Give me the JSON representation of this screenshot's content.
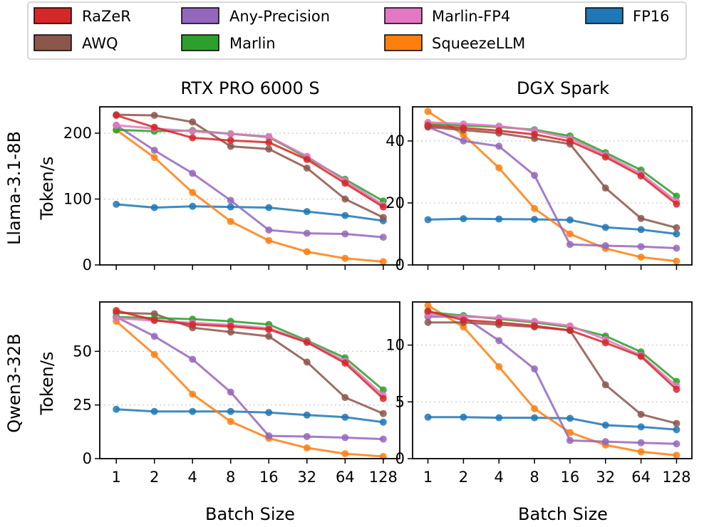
{
  "legend": [
    {
      "name": "RaZeR",
      "color": "#d62728"
    },
    {
      "name": "AWQ",
      "color": "#8c564b"
    },
    {
      "name": "Any-Precision",
      "color": "#9467bd"
    },
    {
      "name": "Marlin",
      "color": "#2ca02c"
    },
    {
      "name": "Marlin-FP4",
      "color": "#e377c2"
    },
    {
      "name": "SqueezeLLM",
      "color": "#ff7f0e"
    },
    {
      "name": "FP16",
      "color": "#1f77b4"
    }
  ],
  "xlabel": "Batch Size",
  "x_ticks": [
    "1",
    "2",
    "4",
    "8",
    "16",
    "32",
    "64",
    "128"
  ],
  "row_labels": [
    {
      "model": "Llama-3.1-8B",
      "unit": "Token/s"
    },
    {
      "model": "Qwen3-32B",
      "unit": "Token/s"
    }
  ],
  "chart_data": [
    {
      "type": "line",
      "title": "RTX PRO 6000 S",
      "ylabel": "Token/s",
      "ylim": [
        0,
        240
      ],
      "yticks": [
        0,
        100,
        200
      ],
      "categories": [
        "1",
        "2",
        "4",
        "8",
        "16",
        "32",
        "64",
        "128"
      ],
      "series": [
        {
          "name": "FP16",
          "values": [
            92,
            87,
            89,
            88,
            87,
            81,
            75,
            67
          ]
        },
        {
          "name": "SqueezeLLM",
          "values": [
            205,
            163,
            110,
            66,
            37,
            20,
            10,
            5
          ]
        },
        {
          "name": "Any-Precision",
          "values": [
            212,
            174,
            139,
            98,
            53,
            48,
            47,
            42
          ]
        },
        {
          "name": "AWQ",
          "values": [
            228,
            227,
            217,
            180,
            176,
            147,
            100,
            72
          ]
        },
        {
          "name": "Marlin",
          "values": [
            205,
            203,
            204,
            199,
            194,
            163,
            130,
            97
          ]
        },
        {
          "name": "Marlin-FP4",
          "values": [
            212,
            207,
            203,
            199,
            195,
            165,
            128,
            91
          ]
        },
        {
          "name": "RaZeR",
          "values": [
            227,
            209,
            193,
            189,
            186,
            160,
            124,
            88
          ]
        }
      ]
    },
    {
      "type": "line",
      "title": "DGX Spark",
      "ylabel": "Token/s",
      "ylim": [
        0,
        51
      ],
      "yticks": [
        0,
        20,
        40
      ],
      "categories": [
        "1",
        "2",
        "4",
        "8",
        "16",
        "32",
        "64",
        "128"
      ],
      "series": [
        {
          "name": "FP16",
          "values": [
            14.6,
            14.9,
            14.8,
            14.7,
            14.5,
            12.1,
            11.4,
            10.0
          ]
        },
        {
          "name": "SqueezeLLM",
          "values": [
            49.5,
            42.0,
            31.3,
            18.2,
            10.0,
            5.3,
            2.5,
            1.2
          ]
        },
        {
          "name": "Any-Precision",
          "values": [
            44.5,
            40.0,
            38.3,
            28.9,
            6.6,
            6.2,
            5.9,
            5.4
          ]
        },
        {
          "name": "AWQ",
          "values": [
            44.5,
            43.5,
            42.5,
            40.8,
            39.0,
            24.8,
            15.0,
            12.0
          ]
        },
        {
          "name": "Marlin",
          "values": [
            45.5,
            45.0,
            44.5,
            43.6,
            41.6,
            36.2,
            30.6,
            22.2
          ]
        },
        {
          "name": "Marlin-FP4",
          "values": [
            46.0,
            45.5,
            44.8,
            43.3,
            40.8,
            35.5,
            29.5,
            20.5
          ]
        },
        {
          "name": "RaZeR",
          "values": [
            45.0,
            44.2,
            43.3,
            42.1,
            39.9,
            34.8,
            28.7,
            19.6
          ]
        }
      ]
    },
    {
      "type": "line",
      "title": "",
      "ylabel": "Token/s",
      "ylim": [
        0,
        73
      ],
      "yticks": [
        0,
        25,
        50
      ],
      "categories": [
        "1",
        "2",
        "4",
        "8",
        "16",
        "32",
        "64",
        "128"
      ],
      "series": [
        {
          "name": "FP16",
          "values": [
            23,
            22,
            22,
            22,
            21.5,
            20.3,
            19.3,
            17
          ]
        },
        {
          "name": "SqueezeLLM",
          "values": [
            64,
            48.5,
            30,
            17.3,
            9.5,
            5,
            2.3,
            1
          ]
        },
        {
          "name": "Any-Precision",
          "values": [
            66,
            57,
            46.3,
            31,
            10.6,
            10.3,
            9.8,
            9.1
          ]
        },
        {
          "name": "AWQ",
          "values": [
            68,
            67.5,
            61,
            59,
            57,
            45,
            28.5,
            21
          ]
        },
        {
          "name": "Marlin",
          "values": [
            66,
            65.5,
            65,
            64,
            62.5,
            55,
            47,
            32
          ]
        },
        {
          "name": "Marlin-FP4",
          "values": [
            65.5,
            64.3,
            63.3,
            62.3,
            60.8,
            54.5,
            45.5,
            29.5
          ]
        },
        {
          "name": "RaZeR",
          "values": [
            69,
            64.5,
            62.5,
            61.6,
            60.2,
            54.2,
            44.5,
            28
          ]
        }
      ]
    },
    {
      "type": "line",
      "title": "",
      "ylabel": "",
      "ylim": [
        0,
        13.8
      ],
      "yticks": [
        0,
        5,
        10
      ],
      "categories": [
        "1",
        "2",
        "4",
        "8",
        "16",
        "32",
        "64",
        "128"
      ],
      "series": [
        {
          "name": "FP16",
          "values": [
            3.65,
            3.65,
            3.6,
            3.6,
            3.55,
            2.95,
            2.8,
            2.55
          ]
        },
        {
          "name": "SqueezeLLM",
          "values": [
            13.5,
            11.6,
            8.1,
            4.4,
            2.3,
            1.2,
            0.6,
            0.3
          ]
        },
        {
          "name": "Any-Precision",
          "values": [
            12.5,
            12.5,
            10.4,
            7.9,
            1.6,
            1.5,
            1.4,
            1.3
          ]
        },
        {
          "name": "AWQ",
          "values": [
            12.0,
            12.0,
            11.8,
            11.6,
            11.3,
            6.5,
            3.9,
            3.1
          ]
        },
        {
          "name": "Marlin",
          "values": [
            12.9,
            12.6,
            12.3,
            12.0,
            11.6,
            10.8,
            9.4,
            6.8
          ]
        },
        {
          "name": "Marlin-FP4",
          "values": [
            12.7,
            12.5,
            12.4,
            12.1,
            11.7,
            10.5,
            9.1,
            6.4
          ]
        },
        {
          "name": "RaZeR",
          "values": [
            13.0,
            12.2,
            12.0,
            11.7,
            11.3,
            10.2,
            9.0,
            6.1
          ]
        }
      ]
    }
  ]
}
